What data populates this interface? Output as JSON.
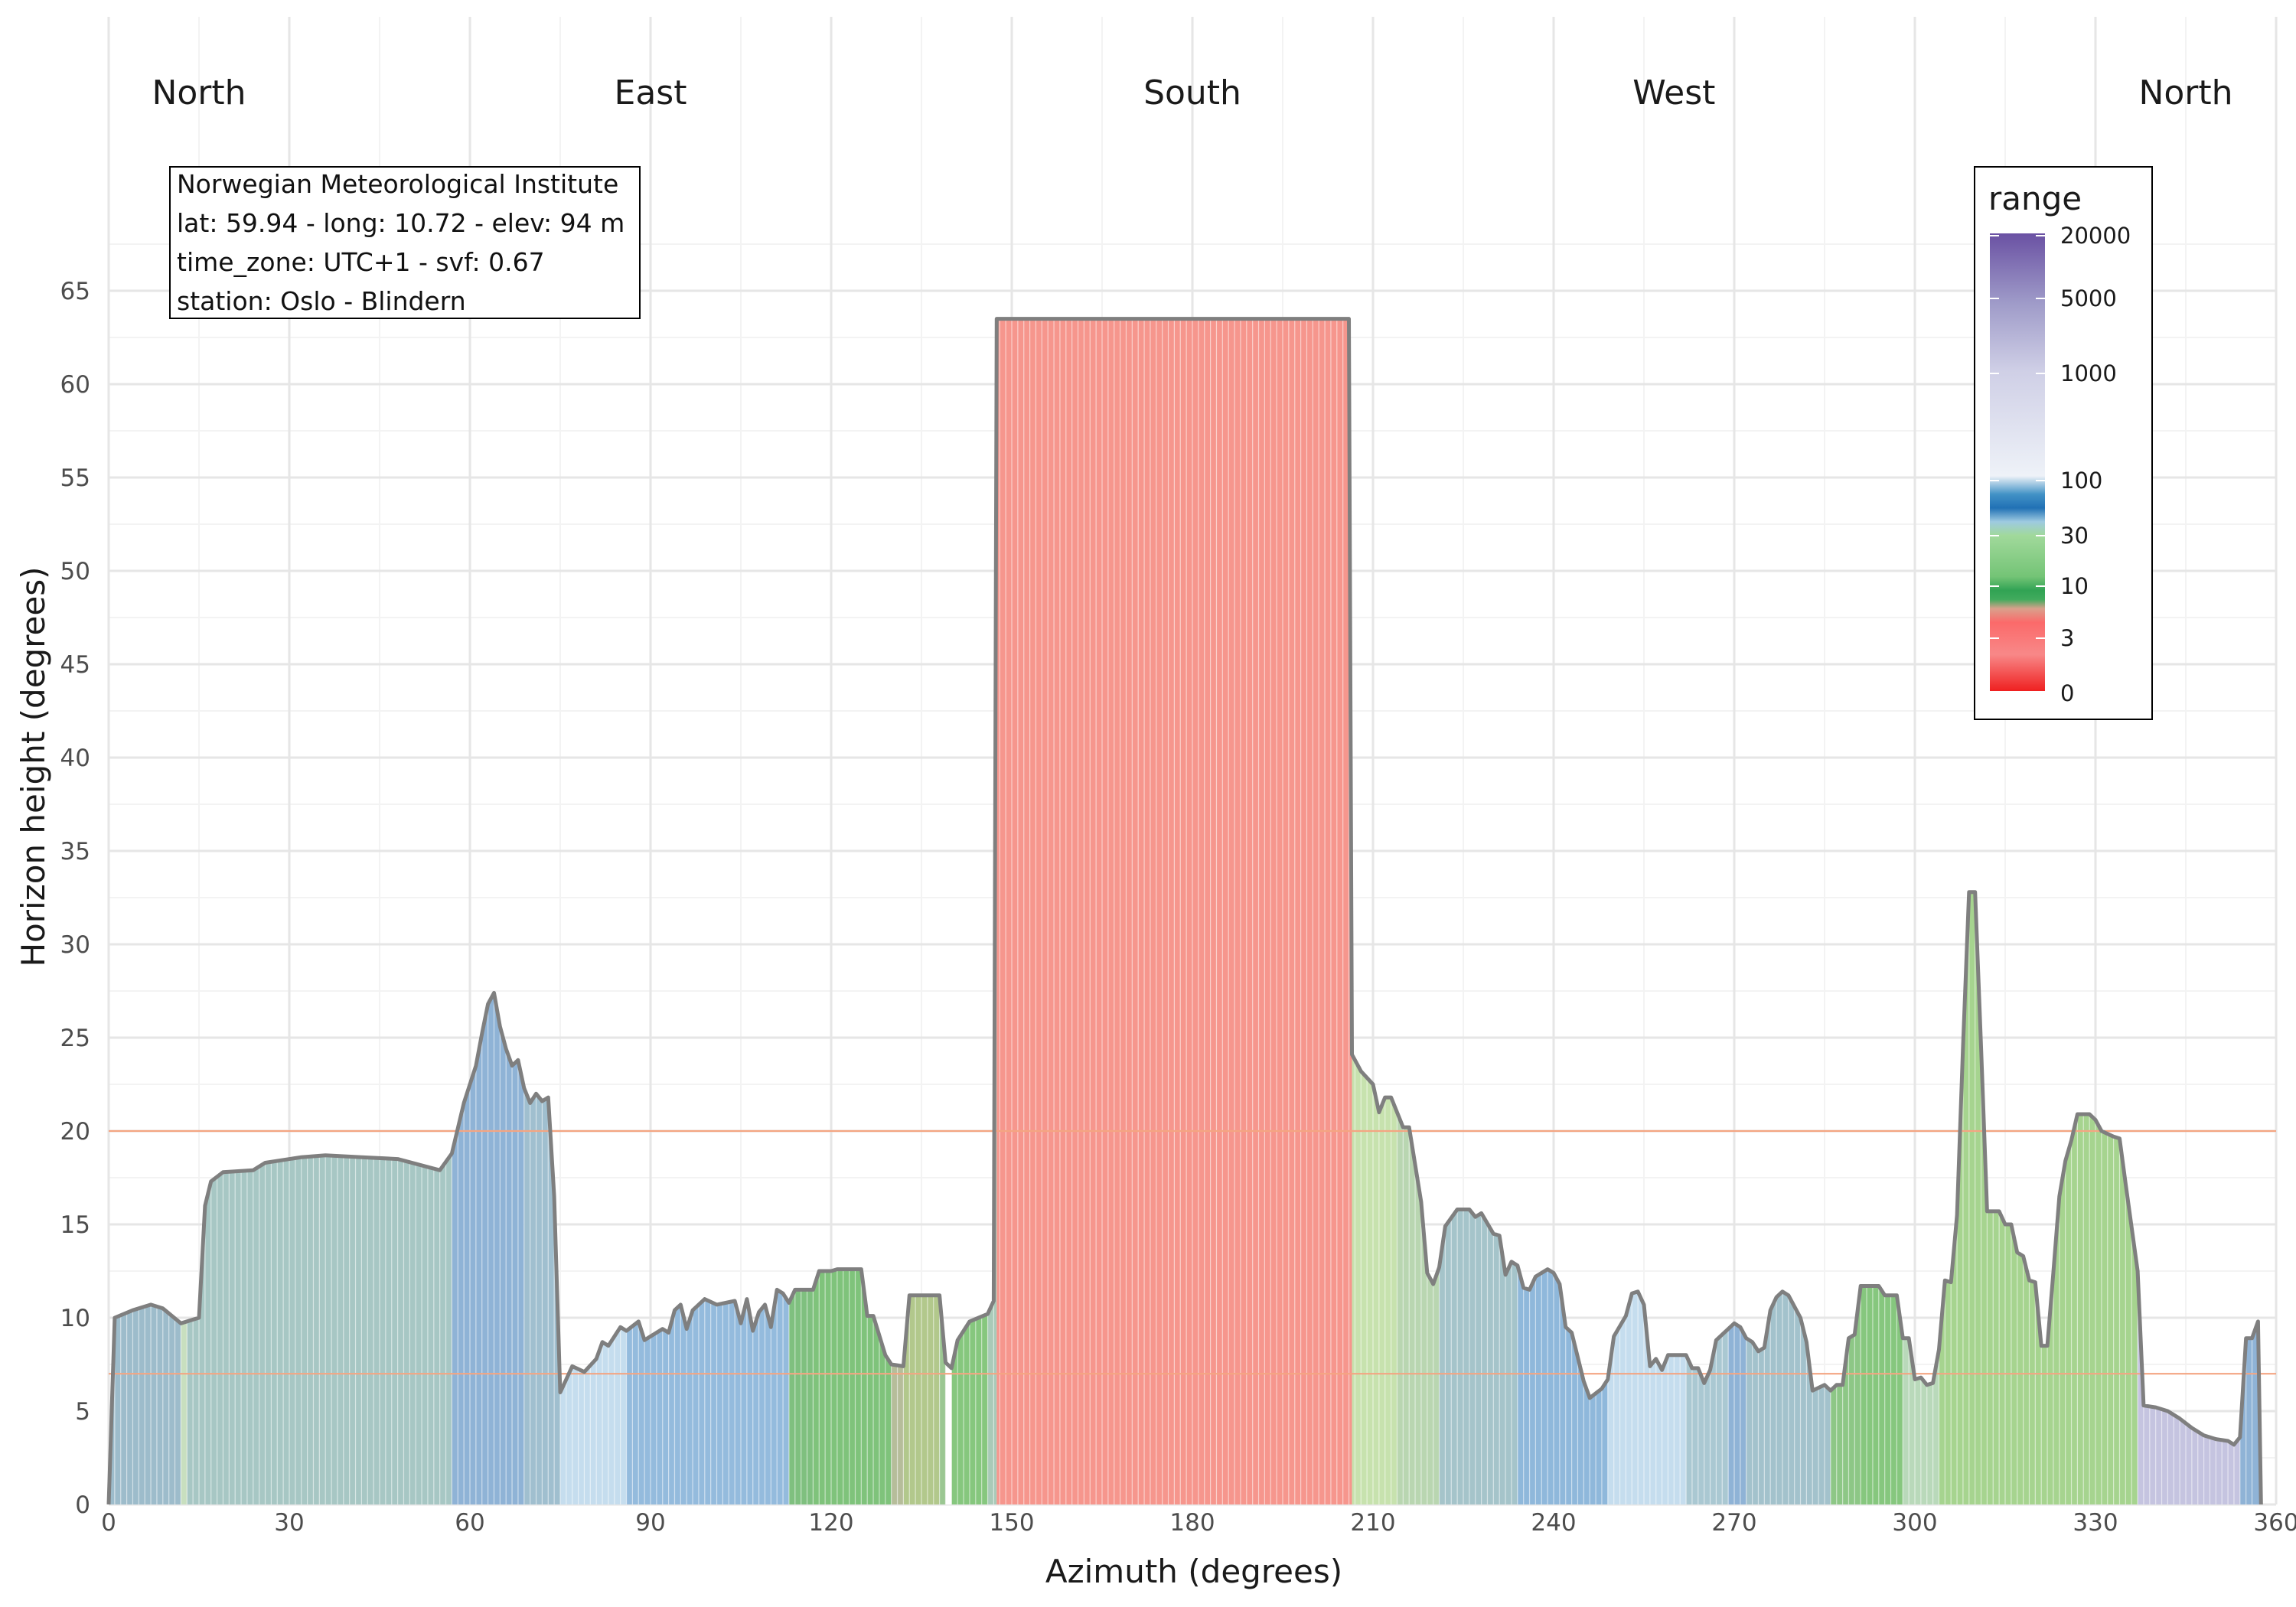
{
  "chart_data": {
    "type": "area",
    "xlabel": "Azimuth (degrees)",
    "ylabel": "Horizon height (degrees)",
    "xlim": [
      0,
      360
    ],
    "ylim": [
      0,
      70
    ],
    "x_ticks": [
      0,
      30,
      60,
      90,
      120,
      150,
      180,
      210,
      240,
      270,
      300,
      330,
      360
    ],
    "y_ticks": [
      0,
      5,
      10,
      15,
      20,
      25,
      30,
      35,
      40,
      45,
      50,
      55,
      60,
      65
    ],
    "grid": true,
    "reference_lines": [
      20,
      7
    ],
    "reference_line_color": "#f4a582",
    "outline_color": "#7f7f7f",
    "directions": [
      {
        "label": "North",
        "azimuth": 15
      },
      {
        "label": "East",
        "azimuth": 90
      },
      {
        "label": "South",
        "azimuth": 180
      },
      {
        "label": "West",
        "azimuth": 260
      },
      {
        "label": "North",
        "azimuth": 345
      }
    ],
    "info_box": [
      "Norwegian Meteorological Institute",
      "lat: 59.94 - long: 10.72 - elev: 94 m",
      "time_zone: UTC+1 - svf: 0.67",
      "station: Oslo - Blindern"
    ],
    "legend": {
      "title": "range",
      "position": "top-right",
      "labels": [
        "20000",
        "5000",
        "1000",
        "100",
        "30",
        "10",
        "3",
        "0"
      ]
    },
    "horizon": [
      [
        0,
        0
      ],
      [
        1,
        10
      ],
      [
        4,
        10.4
      ],
      [
        7,
        10.7
      ],
      [
        9,
        10.5
      ],
      [
        12,
        9.7
      ],
      [
        15,
        10
      ],
      [
        16,
        16
      ],
      [
        17,
        17.3
      ],
      [
        19,
        17.8
      ],
      [
        24,
        17.9
      ],
      [
        26,
        18.3
      ],
      [
        32,
        18.6
      ],
      [
        36,
        18.7
      ],
      [
        42,
        18.6
      ],
      [
        48,
        18.5
      ],
      [
        55,
        17.9
      ],
      [
        57,
        18.8
      ],
      [
        59,
        21.5
      ],
      [
        61,
        23.5
      ],
      [
        62,
        25.2
      ],
      [
        63,
        26.8
      ],
      [
        64,
        27.4
      ],
      [
        65,
        25.6
      ],
      [
        66,
        24.4
      ],
      [
        67,
        23.5
      ],
      [
        68,
        23.8
      ],
      [
        69,
        22.3
      ],
      [
        70,
        21.5
      ],
      [
        71,
        22
      ],
      [
        72,
        21.6
      ],
      [
        73,
        21.8
      ],
      [
        74,
        16.5
      ],
      [
        75,
        6
      ],
      [
        76,
        6.7
      ],
      [
        77,
        7.4
      ],
      [
        79,
        7.1
      ],
      [
        81,
        7.8
      ],
      [
        82,
        8.7
      ],
      [
        83,
        8.5
      ],
      [
        85,
        9.5
      ],
      [
        86,
        9.3
      ],
      [
        88,
        9.8
      ],
      [
        89,
        8.8
      ],
      [
        92,
        9.4
      ],
      [
        93,
        9.2
      ],
      [
        94,
        10.4
      ],
      [
        95,
        10.7
      ],
      [
        96,
        9.4
      ],
      [
        97,
        10.4
      ],
      [
        99,
        11
      ],
      [
        101,
        10.7
      ],
      [
        104,
        10.9
      ],
      [
        105,
        9.7
      ],
      [
        106,
        11
      ],
      [
        107,
        9.3
      ],
      [
        108,
        10.3
      ],
      [
        109,
        10.7
      ],
      [
        110,
        9.5
      ],
      [
        111,
        11.5
      ],
      [
        112,
        11.3
      ],
      [
        113,
        10.8
      ],
      [
        114,
        11.5
      ],
      [
        117,
        11.5
      ],
      [
        118,
        12.5
      ],
      [
        120,
        12.5
      ],
      [
        121,
        12.6
      ],
      [
        125,
        12.6
      ],
      [
        126,
        10.1
      ],
      [
        127,
        10.1
      ],
      [
        129,
        8
      ],
      [
        130,
        7.5
      ],
      [
        132,
        7.4
      ],
      [
        133,
        11.2
      ],
      [
        138,
        11.2
      ],
      [
        139,
        7.6
      ],
      [
        140,
        7.3
      ],
      [
        141,
        8.8
      ],
      [
        143,
        9.8
      ],
      [
        146,
        10.2
      ],
      [
        147,
        10.9
      ],
      [
        147.5,
        63.5
      ],
      [
        206,
        63.5
      ],
      [
        206.5,
        24.1
      ],
      [
        208,
        23.2
      ],
      [
        210,
        22.5
      ],
      [
        211,
        21
      ],
      [
        212,
        21.8
      ],
      [
        213,
        21.8
      ],
      [
        215,
        20.2
      ],
      [
        216,
        20.2
      ],
      [
        218,
        16.2
      ],
      [
        219,
        12.4
      ],
      [
        220,
        11.8
      ],
      [
        221,
        12.7
      ],
      [
        222,
        14.9
      ],
      [
        224,
        15.8
      ],
      [
        226,
        15.8
      ],
      [
        227,
        15.4
      ],
      [
        228,
        15.6
      ],
      [
        230,
        14.5
      ],
      [
        231,
        14.4
      ],
      [
        232,
        12.3
      ],
      [
        233,
        13
      ],
      [
        234,
        12.8
      ],
      [
        235,
        11.6
      ],
      [
        236,
        11.5
      ],
      [
        237,
        12.2
      ],
      [
        239,
        12.6
      ],
      [
        240,
        12.4
      ],
      [
        241,
        11.8
      ],
      [
        242,
        9.5
      ],
      [
        243,
        9.2
      ],
      [
        245,
        6.6
      ],
      [
        246,
        5.7
      ],
      [
        248,
        6.2
      ],
      [
        249,
        6.7
      ],
      [
        250,
        9
      ],
      [
        252,
        10.1
      ],
      [
        253,
        11.3
      ],
      [
        254,
        11.4
      ],
      [
        255,
        10.7
      ],
      [
        256,
        7.4
      ],
      [
        257,
        7.8
      ],
      [
        258,
        7.2
      ],
      [
        259,
        8
      ],
      [
        262,
        8
      ],
      [
        263,
        7.3
      ],
      [
        264,
        7.3
      ],
      [
        265,
        6.5
      ],
      [
        266,
        7.2
      ],
      [
        267,
        8.8
      ],
      [
        270,
        9.7
      ],
      [
        271,
        9.5
      ],
      [
        272,
        8.9
      ],
      [
        273,
        8.7
      ],
      [
        274,
        8.2
      ],
      [
        275,
        8.4
      ],
      [
        276,
        10.4
      ],
      [
        277,
        11.1
      ],
      [
        278,
        11.4
      ],
      [
        279,
        11.2
      ],
      [
        281,
        10
      ],
      [
        282,
        8.7
      ],
      [
        283,
        6.1
      ],
      [
        285,
        6.4
      ],
      [
        286,
        6.1
      ],
      [
        287,
        6.4
      ],
      [
        288,
        6.4
      ],
      [
        289,
        8.9
      ],
      [
        290,
        9.1
      ],
      [
        291,
        11.7
      ],
      [
        294,
        11.7
      ],
      [
        295,
        11.2
      ],
      [
        297,
        11.2
      ],
      [
        298,
        8.9
      ],
      [
        299,
        8.9
      ],
      [
        300,
        6.7
      ],
      [
        301,
        6.8
      ],
      [
        302,
        6.4
      ],
      [
        303,
        6.5
      ],
      [
        304,
        8.3
      ],
      [
        305,
        12
      ],
      [
        306,
        11.9
      ],
      [
        307,
        15.5
      ],
      [
        308,
        24.5
      ],
      [
        309,
        32.8
      ],
      [
        310,
        32.8
      ],
      [
        311,
        24.5
      ],
      [
        312,
        15.7
      ],
      [
        314,
        15.7
      ],
      [
        315,
        15
      ],
      [
        316,
        15
      ],
      [
        317,
        13.5
      ],
      [
        318,
        13.3
      ],
      [
        319,
        12
      ],
      [
        320,
        11.9
      ],
      [
        321,
        8.5
      ],
      [
        322,
        8.5
      ],
      [
        323,
        12.4
      ],
      [
        324,
        16.5
      ],
      [
        325,
        18.4
      ],
      [
        326,
        19.5
      ],
      [
        327,
        20.9
      ],
      [
        329,
        20.9
      ],
      [
        330,
        20.6
      ],
      [
        331,
        20
      ],
      [
        333,
        19.7
      ],
      [
        334,
        19.6
      ],
      [
        335,
        17.2
      ],
      [
        337,
        12.5
      ],
      [
        338,
        5.3
      ],
      [
        340,
        5.2
      ],
      [
        342,
        5
      ],
      [
        344,
        4.6
      ],
      [
        346,
        4.1
      ],
      [
        348,
        3.7
      ],
      [
        350,
        3.5
      ],
      [
        352,
        3.4
      ],
      [
        353,
        3.2
      ],
      [
        354,
        3.6
      ],
      [
        355,
        8.9
      ],
      [
        356,
        8.9
      ],
      [
        357,
        9.8
      ],
      [
        357.5,
        0
      ]
    ],
    "range_segments": [
      [
        0,
        1,
        "#9dbccb"
      ],
      [
        1,
        12,
        "#9dbccb"
      ],
      [
        12,
        13,
        "#c8dfbf"
      ],
      [
        13,
        57,
        "#a7c7c4"
      ],
      [
        57,
        69,
        "#8fb3d6"
      ],
      [
        69,
        75,
        "#a0bfcf"
      ],
      [
        75,
        86,
        "#c5ddee"
      ],
      [
        86,
        113,
        "#94bbdd"
      ],
      [
        113,
        117,
        "#7fc07f"
      ],
      [
        117,
        130,
        "#7fc37b"
      ],
      [
        130,
        132,
        "#b6bd9a"
      ],
      [
        132,
        138,
        "#b2c88c"
      ],
      [
        138,
        139,
        "#9bc792"
      ],
      [
        139,
        140,
        "#ffffff"
      ],
      [
        140,
        146,
        "#86c77e"
      ],
      [
        146,
        147.5,
        "#a9cab8"
      ],
      [
        147.5,
        206.5,
        "#f6968d"
      ],
      [
        206.5,
        214,
        "#c7e2ae"
      ],
      [
        214,
        221,
        "#b9d6b1"
      ],
      [
        221,
        234,
        "#a5c4ca"
      ],
      [
        234,
        249,
        "#8fb8db"
      ],
      [
        249,
        262,
        "#c5ddee"
      ],
      [
        262,
        269,
        "#aac8d2"
      ],
      [
        269,
        272,
        "#8fb3d6"
      ],
      [
        272,
        286,
        "#a3c2cc"
      ],
      [
        286,
        291,
        "#8dc786"
      ],
      [
        291,
        298,
        "#86c77e"
      ],
      [
        298,
        304,
        "#b9d9ba"
      ],
      [
        304,
        337,
        "#a6d48f"
      ],
      [
        337,
        354,
        "#c5c4e0"
      ],
      [
        354,
        357.5,
        "#8fb3d6"
      ]
    ]
  }
}
